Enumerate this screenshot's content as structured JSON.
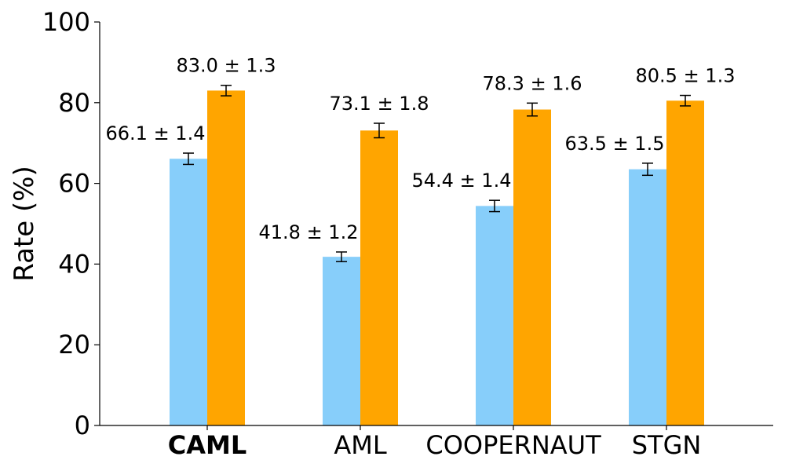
{
  "chart_data": {
    "type": "bar",
    "categories": [
      "CAML",
      "AML",
      "COOPERNAUT",
      "STGN"
    ],
    "bold_categories": [
      "CAML"
    ],
    "series": [
      {
        "color": "#87CEFA",
        "values": [
          66.1,
          41.8,
          54.4,
          63.5
        ],
        "errors": [
          1.4,
          1.2,
          1.4,
          1.5
        ],
        "labels": [
          "66.1 ± 1.4",
          "41.8 ± 1.2",
          "54.4 ± 1.4",
          "63.5 ± 1.5"
        ]
      },
      {
        "color": "#FFA500",
        "values": [
          83.0,
          73.1,
          78.3,
          80.5
        ],
        "errors": [
          1.3,
          1.8,
          1.6,
          1.3
        ],
        "labels": [
          "83.0 ± 1.3",
          "73.1 ± 1.8",
          "78.3 ± 1.6",
          "80.5 ± 1.3"
        ]
      }
    ],
    "title": "",
    "xlabel": "",
    "ylabel": "Rate (%)",
    "ylim": [
      0,
      100
    ],
    "yticks": [
      0,
      20,
      40,
      60,
      80,
      100
    ],
    "grid": false,
    "legend": "none"
  }
}
